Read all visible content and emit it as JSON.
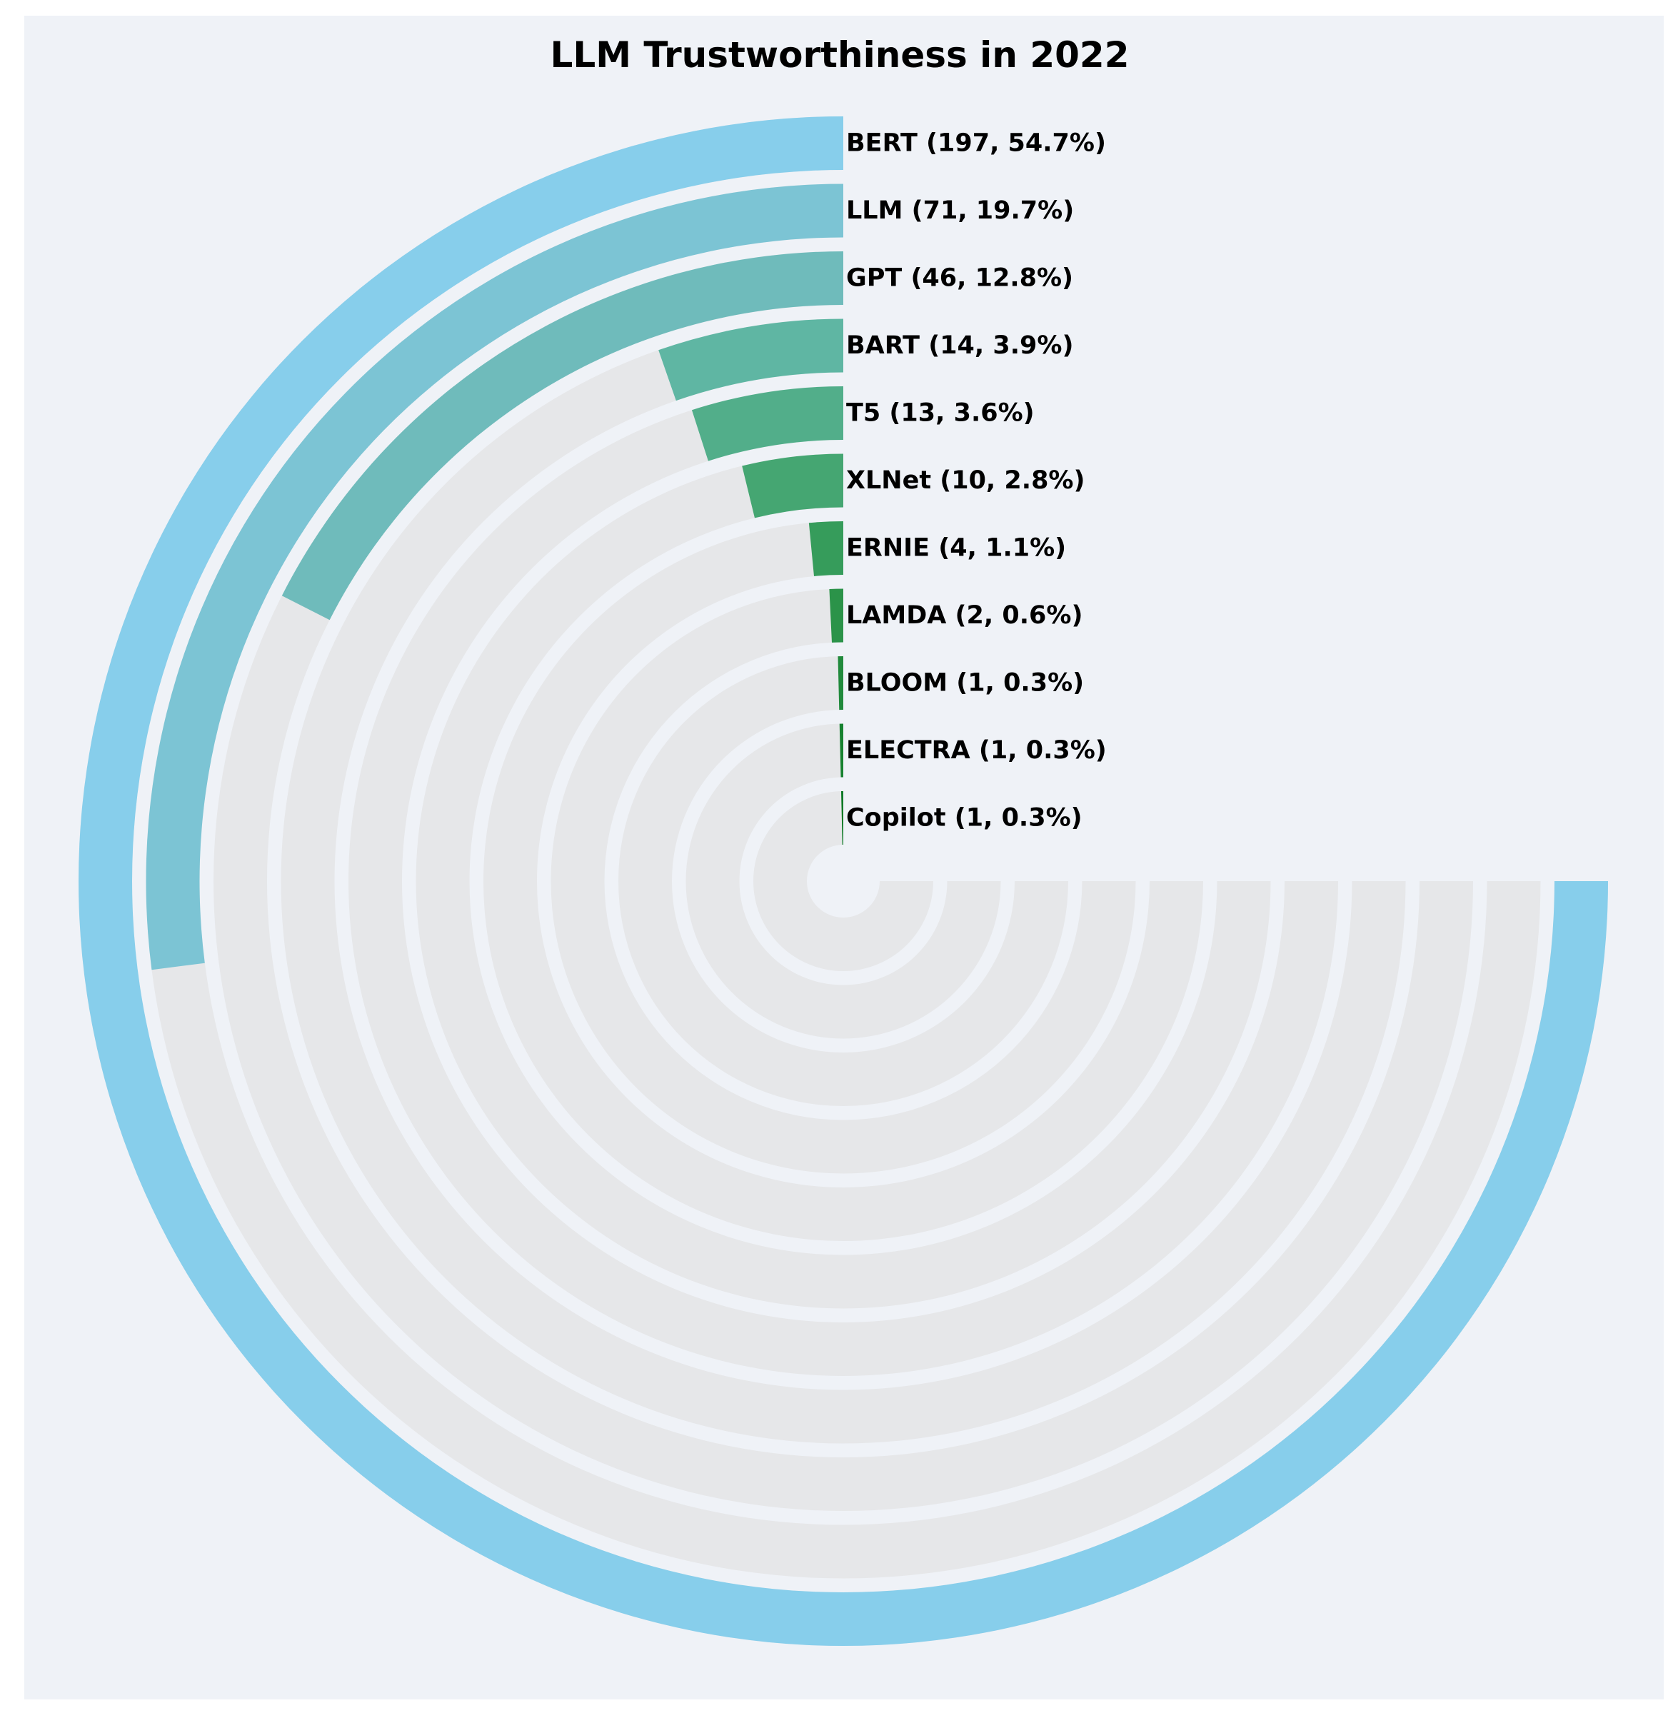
{
  "chart_data": {
    "type": "radial_bar",
    "title": "LLM Trustworthiness in 2022",
    "max_angle_degrees": 270,
    "series": [
      {
        "name": "BERT",
        "value": 197,
        "percent": 54.7,
        "label": "BERT (197, 54.7%)",
        "color": "#87ceeb"
      },
      {
        "name": "LLM",
        "value": 71,
        "percent": 19.7,
        "label": "LLM (71, 19.7%)",
        "color": "#7cc4d4"
      },
      {
        "name": "GPT",
        "value": 46,
        "percent": 12.8,
        "label": "GPT (46, 12.8%)",
        "color": "#6fbbbb"
      },
      {
        "name": "BART",
        "value": 14,
        "percent": 3.9,
        "label": "BART (14, 3.9%)",
        "color": "#5fb6a3"
      },
      {
        "name": "T5",
        "value": 13,
        "percent": 3.6,
        "label": "T5 (13, 3.6%)",
        "color": "#52ae8a"
      },
      {
        "name": "XLNet",
        "value": 10,
        "percent": 2.8,
        "label": "XLNet (10, 2.8%)",
        "color": "#45a672"
      },
      {
        "name": "ERNIE",
        "value": 4,
        "percent": 1.1,
        "label": "ERNIE (4, 1.1%)",
        "color": "#369c5b"
      },
      {
        "name": "LAMDA",
        "value": 2,
        "percent": 0.6,
        "label": "LAMDA (2, 0.6%)",
        "color": "#2b9349"
      },
      {
        "name": "BLOOM",
        "value": 1,
        "percent": 0.3,
        "label": "BLOOM (1, 0.3%)",
        "color": "#218a3c"
      },
      {
        "name": "ELECTRA",
        "value": 1,
        "percent": 0.3,
        "label": "ELECTRA (1, 0.3%)",
        "color": "#178230"
      },
      {
        "name": "Copilot",
        "value": 1,
        "percent": 0.3,
        "label": "Copilot (1, 0.3%)",
        "color": "#0f7a27"
      }
    ],
    "colors": {
      "figure_background": "#ffffff",
      "plot_background": "#eff2f7",
      "track": "#e6e7e9",
      "title": "#000000",
      "label": "#000000"
    }
  }
}
